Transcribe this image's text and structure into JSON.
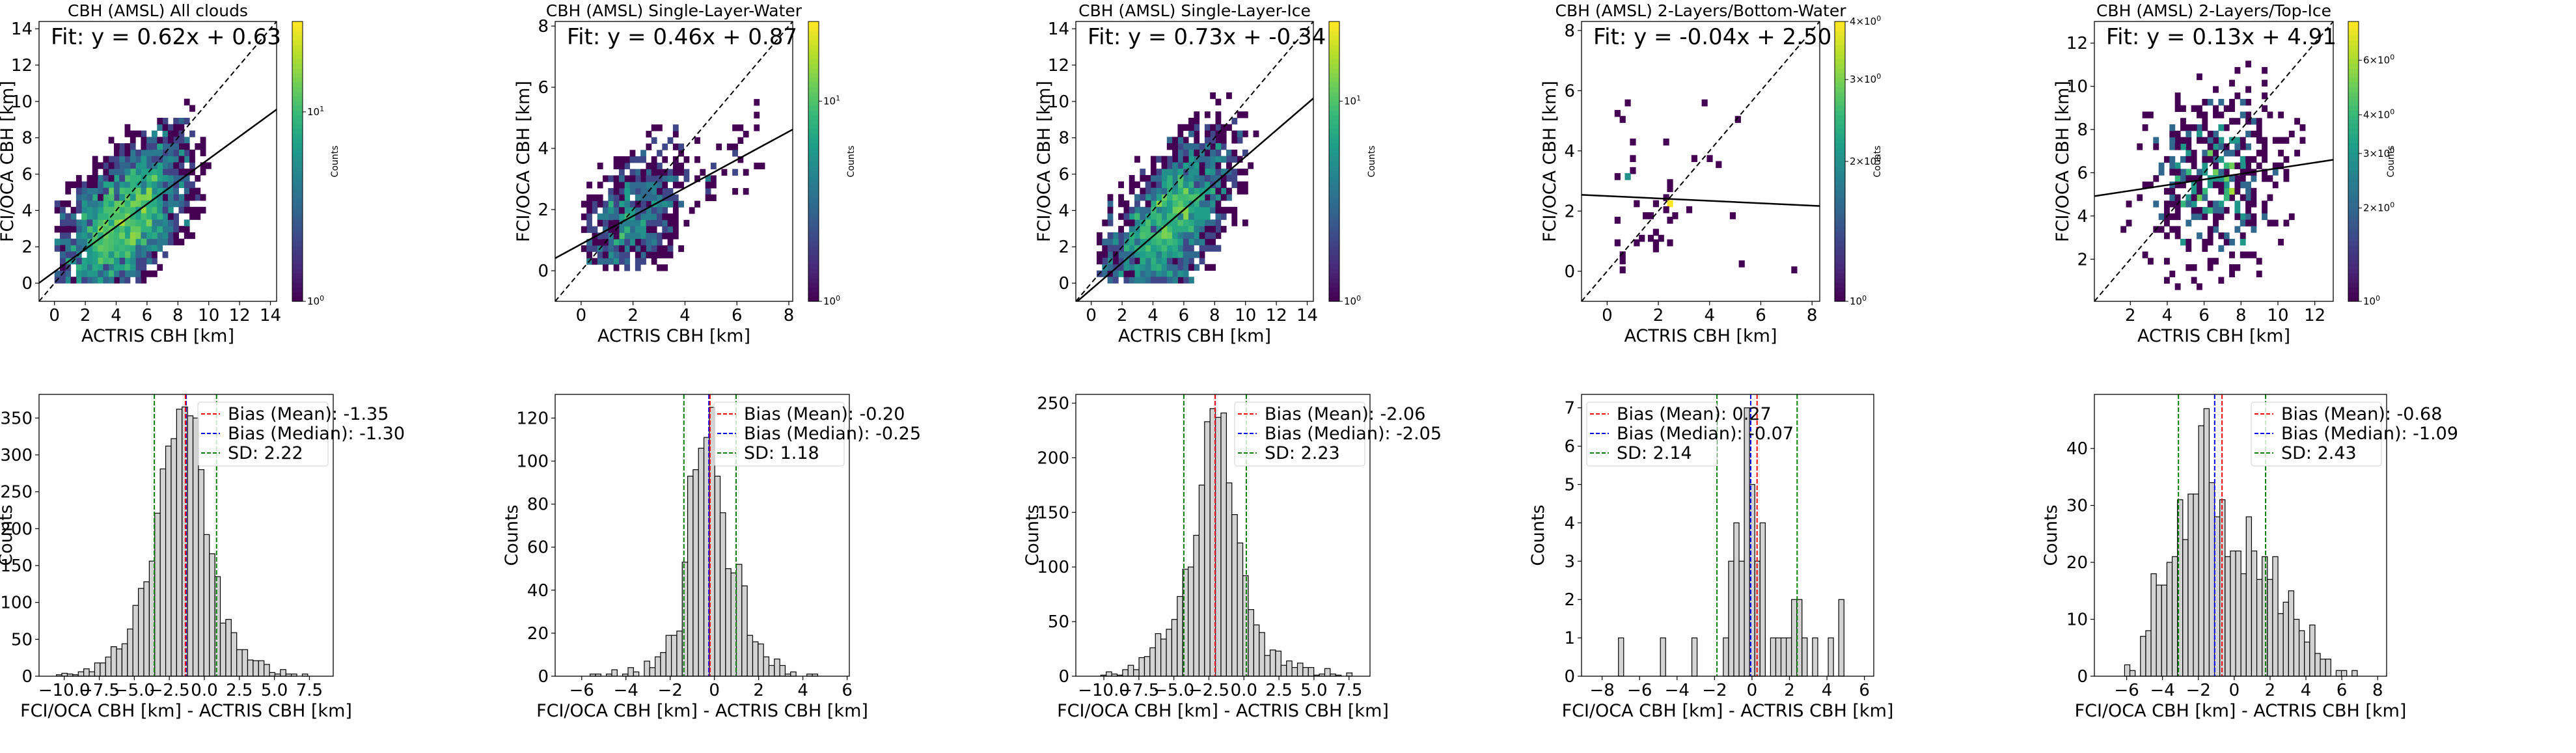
{
  "chart_data": [
    {
      "type": "heatmap",
      "title": "CBH (AMSL) All clouds",
      "xlabel": "ACTRIS CBH [km]",
      "ylabel": "FCI/OCA CBH [km]",
      "xlim": [
        -1,
        14.4
      ],
      "ylim": [
        -1,
        14.4
      ],
      "xticks": [
        0,
        2,
        4,
        6,
        8,
        10,
        12,
        14
      ],
      "yticks": [
        0,
        2,
        4,
        6,
        8,
        10,
        12,
        14
      ],
      "annotation": "Fit: y = 0.62x + 0.63",
      "fit": {
        "slope": 0.62,
        "intercept": 0.63
      },
      "one_to_one_line": true,
      "colorbar": {
        "label": "Counts",
        "scale": "log",
        "range": [
          1,
          30
        ],
        "ticks": [
          "10^0",
          "10^1"
        ]
      },
      "cells_note": "2D histogram of counts, densest near origin (yellow), spreading along the 1:1 line to ~10 km"
    },
    {
      "type": "heatmap",
      "title": "CBH (AMSL) Single-Layer-Water",
      "xlabel": "ACTRIS CBH [km]",
      "ylabel": "FCI/OCA CBH [km]",
      "xlim": [
        -1,
        8.15
      ],
      "ylim": [
        -1,
        8.15
      ],
      "xticks": [
        0,
        2,
        4,
        6,
        8
      ],
      "yticks": [
        0,
        2,
        4,
        6,
        8
      ],
      "annotation": "Fit: y = 0.46x + 0.87",
      "fit": {
        "slope": 0.46,
        "intercept": 0.87
      },
      "one_to_one_line": true,
      "colorbar": {
        "label": "Counts",
        "scale": "log",
        "range": [
          1,
          25
        ],
        "ticks": [
          "10^0",
          "10^1"
        ]
      }
    },
    {
      "type": "heatmap",
      "title": "CBH (AMSL) Single-Layer-Ice",
      "xlabel": "ACTRIS CBH [km]",
      "ylabel": "FCI/OCA CBH [km]",
      "xlim": [
        -1,
        14.4
      ],
      "ylim": [
        -1,
        14.4
      ],
      "xticks": [
        0,
        2,
        4,
        6,
        8,
        10,
        12,
        14
      ],
      "yticks": [
        0,
        2,
        4,
        6,
        8,
        10,
        12,
        14
      ],
      "annotation": "Fit: y = 0.73x + -0.34",
      "fit": {
        "slope": 0.73,
        "intercept": -0.34
      },
      "one_to_one_line": true,
      "colorbar": {
        "label": "Counts",
        "scale": "log",
        "range": [
          1,
          25
        ],
        "ticks": [
          "10^0",
          "10^1"
        ]
      }
    },
    {
      "type": "heatmap",
      "title": "CBH (AMSL) 2-Layers/Bottom-Water",
      "xlabel": "ACTRIS CBH [km]",
      "ylabel": "FCI/OCA CBH [km]",
      "xlim": [
        -1,
        8.3
      ],
      "ylim": [
        -1,
        8.3
      ],
      "xticks": [
        0,
        2,
        4,
        6,
        8
      ],
      "yticks": [
        0,
        2,
        4,
        6,
        8
      ],
      "annotation": "Fit: y = -0.04x + 2.50",
      "fit": {
        "slope": -0.04,
        "intercept": 2.5
      },
      "one_to_one_line": true,
      "colorbar": {
        "label": "Counts",
        "scale": "log",
        "range": [
          1,
          4
        ],
        "ticks": [
          "10^0",
          "2×10^0",
          "3×10^0",
          "4×10^0"
        ]
      },
      "cells": [
        [
          0.8,
          5.6,
          1
        ],
        [
          3.8,
          5.6,
          1
        ],
        [
          0.4,
          5.25,
          1
        ],
        [
          0.6,
          5.05,
          1
        ],
        [
          5.1,
          5.05,
          1
        ],
        [
          1.0,
          4.3,
          1
        ],
        [
          2.3,
          4.3,
          1
        ],
        [
          1.0,
          3.75,
          1
        ],
        [
          3.4,
          3.75,
          1
        ],
        [
          4.0,
          3.75,
          1
        ],
        [
          4.35,
          3.55,
          1
        ],
        [
          1.0,
          3.35,
          1
        ],
        [
          0.4,
          3.15,
          1
        ],
        [
          0.8,
          3.15,
          2
        ],
        [
          2.45,
          2.95,
          1
        ],
        [
          2.45,
          2.75,
          1
        ],
        [
          2.3,
          2.45,
          1
        ],
        [
          2.45,
          2.25,
          4
        ],
        [
          1.15,
          2.25,
          1
        ],
        [
          1.9,
          2.25,
          1
        ],
        [
          2.3,
          2.05,
          1
        ],
        [
          3.2,
          2.05,
          1
        ],
        [
          1.5,
          1.85,
          1
        ],
        [
          1.7,
          1.85,
          1
        ],
        [
          2.65,
          1.85,
          1
        ],
        [
          4.9,
          1.85,
          1
        ],
        [
          0.4,
          1.7,
          1
        ],
        [
          2.45,
          1.7,
          1
        ],
        [
          1.9,
          1.3,
          1
        ],
        [
          1.35,
          1.1,
          1
        ],
        [
          1.7,
          1.1,
          1
        ],
        [
          2.1,
          1.1,
          1
        ],
        [
          0.4,
          0.95,
          1
        ],
        [
          1.15,
          0.95,
          1
        ],
        [
          1.9,
          0.95,
          1
        ],
        [
          2.45,
          0.95,
          1
        ],
        [
          1.9,
          0.75,
          1
        ],
        [
          0.6,
          0.55,
          1
        ],
        [
          0.6,
          0.35,
          1
        ],
        [
          0.6,
          0.05,
          1
        ],
        [
          5.25,
          0.25,
          1
        ],
        [
          7.3,
          0.05,
          1
        ]
      ]
    },
    {
      "type": "heatmap",
      "title": "CBH (AMSL) 2-Layers/Top-Ice",
      "xlabel": "ACTRIS CBH [km]",
      "ylabel": "FCI/OCA CBH [km]",
      "xlim": [
        0.05,
        13
      ],
      "ylim": [
        0.05,
        13
      ],
      "xticks": [
        2,
        4,
        6,
        8,
        10,
        12
      ],
      "yticks": [
        2,
        4,
        6,
        8,
        10,
        12
      ],
      "annotation": "Fit: y = 0.13x + 4.91",
      "fit": {
        "slope": 0.13,
        "intercept": 4.91
      },
      "one_to_one_line": true,
      "colorbar": {
        "label": "Counts",
        "scale": "log",
        "range": [
          1,
          8
        ],
        "ticks": [
          "10^0",
          "2×10^0",
          "3×10^0",
          "4×10^0",
          "6×10^0"
        ]
      }
    },
    {
      "type": "bar",
      "subtype": "histogram",
      "title": "",
      "xlabel": "FCI/OCA CBH [km] - ACTRIS CBH [km]",
      "ylabel": "Counts",
      "xlim": [
        -11.8,
        9.2
      ],
      "ylim": [
        0,
        382
      ],
      "xticks": [
        "−10.0",
        "−7.5",
        "−5.0",
        "−2.5",
        "0.0",
        "2.5",
        "5.0",
        "7.5"
      ],
      "xtick_values": [
        -10,
        -7.5,
        -5,
        -2.5,
        0,
        2.5,
        5,
        7.5
      ],
      "yticks": [
        0,
        50,
        100,
        150,
        200,
        250,
        300,
        350
      ],
      "bin_start": -10.95,
      "bin_width": 0.39,
      "values": [
        0,
        2,
        4,
        3,
        2,
        6,
        10,
        6,
        18,
        18,
        26,
        40,
        37,
        44,
        64,
        96,
        119,
        128,
        156,
        221,
        281,
        312,
        322,
        362,
        365,
        353,
        350,
        280,
        192,
        166,
        135,
        72,
        77,
        59,
        36,
        36,
        22,
        21,
        21,
        16,
        5,
        3,
        9,
        3,
        3,
        0,
        3,
        0,
        0
      ],
      "bias_mean": -1.35,
      "bias_median": -1.3,
      "sd": 2.22,
      "legend": {
        "position": "top-right",
        "entries": [
          "Bias (Mean): -1.35",
          "Bias (Median): -1.30",
          "SD: 2.22"
        ]
      }
    },
    {
      "type": "bar",
      "subtype": "histogram",
      "title": "",
      "xlabel": "FCI/OCA CBH [km] - ACTRIS CBH [km]",
      "ylabel": "Counts",
      "xlim": [
        -7.2,
        6.1
      ],
      "ylim": [
        0,
        131
      ],
      "xticks": [
        "−6",
        "−4",
        "−2",
        "0",
        "2",
        "4",
        "6"
      ],
      "xtick_values": [
        -6,
        -4,
        -2,
        0,
        2,
        4,
        6
      ],
      "yticks": [
        0,
        20,
        40,
        60,
        80,
        100,
        120
      ],
      "bin_start": -6.6,
      "bin_width": 0.245,
      "values": [
        0,
        0,
        0,
        0,
        1,
        1,
        0,
        1,
        3,
        0,
        1,
        4,
        2,
        0,
        7,
        4,
        9,
        11,
        19,
        19,
        21,
        53,
        93,
        96,
        106,
        111,
        125,
        93,
        76,
        50,
        48,
        52,
        42,
        19,
        16,
        15,
        9,
        5,
        8,
        5,
        1,
        2,
        0,
        0,
        1,
        1,
        0,
        0,
        0
      ],
      "bias_mean": -0.2,
      "bias_median": -0.25,
      "sd": 1.18,
      "legend": {
        "position": "top-right",
        "entries": [
          "Bias (Mean): -0.20",
          "Bias (Median): -0.25",
          "SD: 1.18"
        ]
      }
    },
    {
      "type": "bar",
      "subtype": "histogram",
      "title": "",
      "xlabel": "FCI/OCA CBH [km] - ACTRIS CBH [km]",
      "ylabel": "Counts",
      "xlim": [
        -12.0,
        9.0
      ],
      "ylim": [
        0,
        258
      ],
      "xticks": [
        "−10.0",
        "−7.5",
        "−5.0",
        "−2.5",
        "0.0",
        "2.5",
        "5.0",
        "7.5"
      ],
      "xtick_values": [
        -10,
        -7.5,
        -5,
        -2.5,
        0,
        2.5,
        5,
        7.5
      ],
      "yticks": [
        0,
        50,
        100,
        150,
        200,
        250
      ],
      "bin_start": -11.0,
      "bin_width": 0.39,
      "values": [
        0,
        0,
        1,
        4,
        2,
        1,
        6,
        10,
        6,
        17,
        18,
        26,
        39,
        34,
        43,
        52,
        73,
        98,
        100,
        129,
        175,
        233,
        245,
        237,
        241,
        177,
        148,
        122,
        92,
        61,
        47,
        40,
        19,
        24,
        23,
        10,
        14,
        8,
        12,
        8,
        8,
        1,
        2,
        7,
        2,
        1,
        0,
        3,
        0
      ],
      "bias_mean": -2.06,
      "bias_median": -2.05,
      "sd": 2.23,
      "legend": {
        "position": "top-right",
        "entries": [
          "Bias (Mean): -2.06",
          "Bias (Median): -2.05",
          "SD: 2.23"
        ]
      }
    },
    {
      "type": "bar",
      "subtype": "histogram",
      "title": "",
      "xlabel": "FCI/OCA CBH [km] - ACTRIS CBH [km]",
      "ylabel": "Counts",
      "xlim": [
        -9.1,
        6.5
      ],
      "ylim": [
        0,
        7.35
      ],
      "xticks": [
        "−8",
        "−6",
        "−4",
        "−2",
        "0",
        "2",
        "4",
        "6"
      ],
      "xtick_values": [
        -8,
        -6,
        -4,
        -2,
        0,
        2,
        4,
        6
      ],
      "yticks": [
        0,
        1,
        2,
        3,
        4,
        5,
        6,
        7
      ],
      "bin_start": -8.25,
      "bin_width": 0.28,
      "values": [
        0,
        0,
        0,
        0,
        1,
        0,
        0,
        0,
        0,
        0,
        0,
        0,
        1,
        0,
        0,
        0,
        0,
        0,
        1,
        0,
        0,
        0,
        0,
        0,
        1,
        3,
        4,
        3,
        7,
        5,
        3,
        4,
        0,
        1,
        1,
        1,
        1,
        2,
        2,
        1,
        0,
        1,
        0,
        0,
        1,
        0,
        2,
        0,
        0,
        0
      ],
      "bias_mean": 0.27,
      "bias_median": -0.07,
      "sd": 2.14,
      "legend": {
        "position": "top-left",
        "entries": [
          "Bias (Mean): 0.27",
          "Bias (Median): -0.07",
          "SD: 2.14"
        ]
      }
    },
    {
      "type": "bar",
      "subtype": "histogram",
      "title": "",
      "xlabel": "FCI/OCA CBH [km] - ACTRIS CBH [km]",
      "ylabel": "Counts",
      "xlim": [
        -7.8,
        8.5
      ],
      "ylim": [
        0,
        49.5
      ],
      "xticks": [
        "−6",
        "−4",
        "−2",
        "0",
        "2",
        "4",
        "6",
        "8"
      ],
      "xtick_values": [
        -6,
        -4,
        -2,
        0,
        2,
        4,
        6,
        8
      ],
      "yticks": [
        0,
        10,
        20,
        30,
        40
      ],
      "bin_start": -7.0,
      "bin_width": 0.295,
      "values": [
        0,
        0,
        0,
        2,
        1,
        0,
        7,
        8,
        18,
        16,
        16,
        20,
        21,
        31,
        24,
        32,
        32,
        44,
        47,
        34,
        28,
        31,
        21,
        22,
        22,
        18,
        28,
        22,
        17,
        21,
        17,
        21,
        11,
        13,
        15,
        10,
        8,
        6,
        9,
        4,
        3,
        3,
        0,
        1,
        1,
        0,
        1,
        0,
        0
      ],
      "bias_mean": -0.68,
      "bias_median": -1.09,
      "sd": 2.43,
      "legend": {
        "position": "top-right",
        "entries": [
          "Bias (Mean): -0.68",
          "Bias (Median): -1.09",
          "SD: 2.43"
        ]
      }
    }
  ],
  "colors": {
    "bar_fill": "#d3d3d3",
    "bar_edge": "#000000",
    "mean_line": "#ff0000",
    "median_line": "#0000ff",
    "sd_line": "#008000",
    "fit_line": "#000000",
    "viridis": [
      "#440154",
      "#482878",
      "#3e4989",
      "#31688e",
      "#26828e",
      "#1f9e89",
      "#35b779",
      "#6ece58",
      "#b5de2b",
      "#fde725"
    ]
  }
}
